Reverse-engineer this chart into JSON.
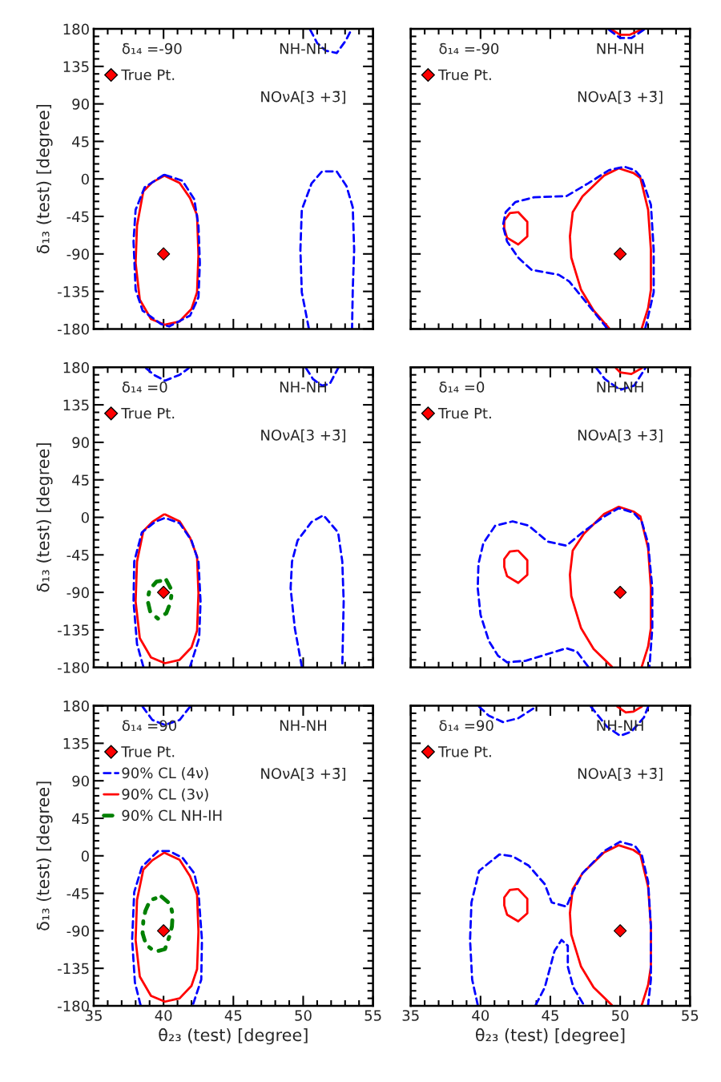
{
  "chart_data": [
    {
      "type": "line",
      "ylabel": "δ₁₃ (test) [degree]",
      "xlim": [
        35,
        55
      ],
      "ylim": [
        -180,
        180
      ],
      "xticks": [
        35,
        40,
        45,
        50,
        55
      ],
      "yticks": [
        -180,
        -135,
        -90,
        -45,
        0,
        45,
        90,
        135,
        180
      ],
      "tick_labels": "y",
      "legend": "top left",
      "annotations": [
        "δ₁₄ =-90",
        "NH-NH",
        "NOνA[3 +3̄]"
      ],
      "series": [
        {
          "type": "scatter",
          "name": "True Pt.",
          "color": "#ff0000",
          "marker": "diamond",
          "x": [
            40
          ],
          "values": [
            -90
          ]
        },
        {
          "color": "#ff0000",
          "line_style": "solid",
          "x": [
            40.1,
            41.15,
            41.9,
            42.4,
            42.5,
            42.4,
            42.0,
            41.15,
            40.1,
            39.1,
            38.3,
            38.0,
            38.1,
            38.55,
            39.2,
            40.0
          ],
          "values": [
            3.5,
            -4.8,
            -23,
            -43.6,
            -91,
            -136,
            -156,
            -171,
            -175,
            -168,
            -145,
            -101,
            -56,
            -15,
            -4,
            3.3
          ]
        },
        {
          "color": "#0000ff",
          "line_style": "dashed",
          "x": [
            40.1,
            41.35,
            42.2,
            42.5,
            42.6,
            42.5,
            41.9,
            40.4,
            39.8,
            38.5,
            38.0,
            37.85,
            38.0,
            38.65,
            40.0
          ],
          "values": [
            4.8,
            -2.2,
            -24.5,
            -56,
            -101,
            -142,
            -164,
            -177,
            -174,
            -158,
            -133,
            -75,
            -37,
            -10,
            4.6
          ]
        },
        {
          "color": "#0000ff",
          "line_style": "dashed",
          "x": [
            50.4,
            49.9,
            49.8,
            49.9,
            50.6,
            51.35,
            52.4,
            53.1,
            53.55,
            53.65,
            53.55,
            53.5
          ],
          "values": [
            -179,
            -136,
            -85,
            -37,
            -5.4,
            9,
            9,
            -8.6,
            -34,
            -85,
            -133,
            -179
          ]
        },
        {
          "color": "#0000ff",
          "line_style": "dashed",
          "x": [
            50.5,
            51.0,
            51.6,
            52.4,
            53.05,
            53.45
          ],
          "values": [
            179,
            163,
            154,
            151,
            166,
            179
          ]
        }
      ]
    },
    {
      "type": "line",
      "xlim": [
        35,
        55
      ],
      "ylim": [
        -180,
        180
      ],
      "xticks": [
        35,
        40,
        45,
        50,
        55
      ],
      "yticks": [
        -180,
        -135,
        -90,
        -45,
        0,
        45,
        90,
        135,
        180
      ],
      "tick_labels": false,
      "legend": "top left",
      "annotations": [
        "δ₁₄ =-90",
        "NH-NH",
        "NOνA[3 +3̄]"
      ],
      "series": [
        {
          "type": "scatter",
          "name": "True Pt.",
          "color": "#ff0000",
          "marker": "diamond",
          "x": [
            50
          ],
          "values": [
            -90
          ]
        },
        {
          "color": "#ff0000",
          "line_style": "solid",
          "x": [
            49.4,
            50,
            50.7,
            51.5
          ],
          "values": [
            179,
            173,
            173,
            179
          ]
        },
        {
          "color": "#0000ff",
          "line_style": "dashed",
          "x": [
            49.2,
            50,
            50.8,
            51.7
          ],
          "values": [
            179,
            169,
            169,
            179
          ]
        },
        {
          "color": "#ff0000",
          "line_style": "solid",
          "x": [
            49.2,
            48.1,
            47.2,
            46.5,
            46.4,
            46.6,
            47.3,
            48.85,
            49.9,
            50.95,
            51.45,
            52.0,
            52.2,
            52.2,
            52.0,
            51.55
          ],
          "values": [
            -179,
            -158,
            -133,
            -94.5,
            -69,
            -40,
            -21,
            4,
            12.7,
            7,
            1,
            -37,
            -85,
            -133,
            -155,
            -179
          ]
        },
        {
          "color": "#ff0000",
          "line_style": "solid",
          "x": [
            42.7,
            43.35,
            43.35,
            42.7,
            41.9,
            41.7,
            41.7,
            42.1,
            42.6
          ],
          "values": [
            -40,
            -51.5,
            -69,
            -78.6,
            -70.6,
            -59.5,
            -50,
            -41,
            -40
          ]
        },
        {
          "color": "#0000ff",
          "line_style": "dashed",
          "x": [
            49.05,
            47.9,
            46.35,
            45.6,
            43.65,
            42.7,
            41.9,
            41.6,
            41.8,
            42.5,
            43.85,
            46.15,
            47.7,
            49.2,
            50.3,
            51.05,
            51.55,
            52.2,
            52.4,
            52.4,
            52.1,
            51.8
          ],
          "values": [
            -179,
            -155,
            -123,
            -115,
            -109,
            -94.5,
            -75,
            -56,
            -40,
            -27.7,
            -22,
            -20.7,
            -5.4,
            10.5,
            14.6,
            10.5,
            1,
            -31,
            -85,
            -136,
            -158,
            -179
          ]
        }
      ]
    },
    {
      "type": "line",
      "ylabel": "δ₁₃ (test) [degree]",
      "xlim": [
        35,
        55
      ],
      "ylim": [
        -180,
        180
      ],
      "xticks": [
        35,
        40,
        45,
        50,
        55
      ],
      "yticks": [
        -180,
        -135,
        -90,
        -45,
        0,
        45,
        90,
        135,
        180
      ],
      "tick_labels": "y",
      "legend": "top left",
      "annotations": [
        "δ₁₄ =0",
        "NH-NH",
        "NOνA[3 +3̄]"
      ],
      "series": [
        {
          "type": "scatter",
          "name": "True Pt.",
          "color": "#ff0000",
          "marker": "diamond",
          "x": [
            40
          ],
          "values": [
            -90
          ]
        },
        {
          "color": "#0000ff",
          "line_style": "dashed",
          "x": [
            38.75,
            39.3,
            40.1,
            41.15,
            41.8
          ],
          "values": [
            179,
            171,
            164,
            171,
            179
          ]
        },
        {
          "color": "#0000ff",
          "line_style": "dashed",
          "x": [
            50.2,
            50.7,
            51.35,
            51.9,
            52.5
          ],
          "values": [
            179,
            166,
            158,
            160,
            179
          ]
        },
        {
          "color": "#ff0000",
          "line_style": "solid",
          "x": [
            40.1,
            41.15,
            41.9,
            42.4,
            42.5,
            42.4,
            42.0,
            41.15,
            40.1,
            39.1,
            38.3,
            38.0,
            38.1,
            38.55,
            39.2,
            40.0
          ],
          "values": [
            3.5,
            -4.8,
            -24.5,
            -46.8,
            -91,
            -136,
            -156,
            -171,
            -175,
            -168,
            -145,
            -101,
            -53,
            -16.5,
            -5.4,
            3.3
          ]
        },
        {
          "color": "#0000ff",
          "line_style": "dashed",
          "x": [
            38.55,
            38.1,
            37.85,
            37.9,
            38.45,
            39.4,
            40.1,
            41.15,
            42.0,
            42.5,
            42.65,
            42.55,
            41.9
          ],
          "values": [
            -179,
            -152,
            -101,
            -53,
            -18,
            -5.4,
            -0.6,
            -7,
            -27.7,
            -53,
            -101,
            -145,
            -179
          ]
        },
        {
          "color": "#0000ff",
          "line_style": "dashed",
          "x": [
            49.9,
            49.4,
            49.1,
            49.2,
            49.6,
            50.6,
            51.45,
            52.5,
            52.8,
            52.9,
            52.8
          ],
          "values": [
            -179,
            -133,
            -85,
            -53,
            -27.7,
            -5.4,
            2.5,
            -18,
            -53,
            -101,
            -179
          ]
        },
        {
          "color": "#008000",
          "line_style": "dotted",
          "x": [
            40.2,
            40.6,
            40.5,
            40.2,
            39.6,
            39.05,
            38.85,
            39.0,
            39.5,
            40.1
          ],
          "values": [
            -75.4,
            -88,
            -102,
            -115,
            -121.5,
            -113.5,
            -99.3,
            -86.6,
            -77,
            -75.5
          ]
        }
      ]
    },
    {
      "type": "line",
      "xlim": [
        35,
        55
      ],
      "ylim": [
        -180,
        180
      ],
      "xticks": [
        35,
        40,
        45,
        50,
        55
      ],
      "yticks": [
        -180,
        -135,
        -90,
        -45,
        0,
        45,
        90,
        135,
        180
      ],
      "tick_labels": false,
      "legend": "top left",
      "annotations": [
        "δ₁₄ =0",
        "NH-NH",
        "NOνA[3 +3̄]"
      ],
      "series": [
        {
          "type": "scatter",
          "name": "True Pt.",
          "color": "#ff0000",
          "marker": "diamond",
          "x": [
            50
          ],
          "values": [
            -90
          ]
        },
        {
          "color": "#ff0000",
          "line_style": "solid",
          "x": [
            49.7,
            50,
            50.8,
            51.55
          ],
          "values": [
            179,
            174,
            172,
            179
          ]
        },
        {
          "color": "#0000ff",
          "line_style": "dashed",
          "x": [
            48.3,
            48.9,
            50,
            51,
            51.8
          ],
          "values": [
            179,
            166,
            153,
            158,
            179
          ]
        },
        {
          "color": "#ff0000",
          "line_style": "solid",
          "x": [
            49.4,
            48.1,
            47.2,
            46.5,
            46.4,
            46.6,
            47.4,
            48.85,
            49.9,
            50.95,
            51.45,
            52.0,
            52.2,
            52.2,
            52.0,
            51.55
          ],
          "values": [
            -179,
            -158,
            -133,
            -94.5,
            -69,
            -40,
            -19.7,
            4,
            12.7,
            7,
            1,
            -37,
            -85,
            -133,
            -155,
            -179
          ]
        },
        {
          "color": "#ff0000",
          "line_style": "solid",
          "x": [
            42.7,
            43.35,
            43.35,
            42.7,
            41.9,
            41.7,
            41.7,
            42.1,
            42.6
          ],
          "values": [
            -40,
            -51.5,
            -69,
            -78.6,
            -70.6,
            -59.5,
            -50,
            -41,
            -40
          ]
        },
        {
          "color": "#0000ff",
          "line_style": "dashed",
          "x": [
            47.7,
            46.9,
            46.15,
            44.8,
            43.25,
            41.9,
            41.25,
            40.6,
            40.0,
            39.8,
            39.85,
            40.2,
            41.05,
            42.3,
            43.45,
            44.8,
            46.15,
            47.3,
            48.85,
            49.9,
            50.95,
            51.55,
            52.0,
            52.3,
            52.3,
            52.1
          ],
          "values": [
            -179,
            -161,
            -157,
            -164,
            -172,
            -174,
            -166,
            -148.5,
            -117,
            -85,
            -56,
            -31,
            -10,
            -4.8,
            -10,
            -29,
            -34,
            -18,
            1,
            11,
            5.7,
            -5.4,
            -31,
            -85,
            -133,
            -179
          ]
        }
      ]
    },
    {
      "type": "line",
      "xlabel": "θ₂₃ (test) [degree]",
      "ylabel": "δ₁₃ (test) [degree]",
      "xlim": [
        35,
        55
      ],
      "ylim": [
        -180,
        180
      ],
      "xticks": [
        35,
        40,
        45,
        50,
        55
      ],
      "yticks": [
        -180,
        -135,
        -90,
        -45,
        0,
        45,
        90,
        135,
        180
      ],
      "legend": "top left",
      "annotations": [
        "δ₁₄ =90",
        "NH-NH",
        "NOνA[3 +3̄]"
      ],
      "series": [
        {
          "type": "scatter",
          "name": "True Pt.",
          "color": "#ff0000",
          "marker": "diamond",
          "x": [
            40
          ],
          "values": [
            -90
          ]
        },
        {
          "name": "90% CL (4ν)",
          "color": "#0000ff",
          "line_style": "dashed",
          "x": [
            38.35,
            37.95,
            37.75,
            37.9,
            38.45,
            39.6,
            40.4,
            41.35,
            42.2,
            42.5,
            42.75,
            42.7,
            42.1
          ],
          "values": [
            -179,
            -152,
            -101,
            -43.6,
            -13.4,
            5.7,
            5.7,
            -2.2,
            -21,
            -43.6,
            -101,
            -148.5,
            -179
          ]
        },
        {
          "name": "90% CL (3ν)",
          "color": "#ff0000",
          "line_style": "solid",
          "x": [
            40.1,
            41.15,
            41.9,
            42.4,
            42.5,
            42.4,
            42.0,
            41.15,
            40.1,
            39.1,
            38.3,
            38.0,
            38.1,
            38.55,
            39.2,
            40.0
          ],
          "values": [
            3.5,
            -4.8,
            -24.5,
            -46.8,
            -91,
            -136,
            -156,
            -171,
            -175,
            -168,
            -145,
            -101,
            -53,
            -16.5,
            -5.4,
            3.3
          ]
        },
        {
          "name": "90% CL NH-IH",
          "color": "#008000",
          "line_style": "dotted",
          "x": [
            39.85,
            40.5,
            40.65,
            40.6,
            40.4,
            40.1,
            39.4,
            38.75,
            38.5,
            38.55,
            38.7,
            39.05,
            39.75
          ],
          "values": [
            -49,
            -58,
            -70.6,
            -85,
            -97.6,
            -112,
            -115,
            -107,
            -93,
            -78.6,
            -66,
            -53,
            -49.3
          ]
        },
        {
          "color": "#0000ff",
          "line_style": "dashed",
          "x": [
            38.5,
            39.2,
            40.1,
            41.15,
            41.9
          ],
          "values": [
            179,
            163,
            157,
            163,
            179
          ]
        }
      ]
    },
    {
      "type": "line",
      "xlabel": "θ₂₃ (test) [degree]",
      "xlim": [
        35,
        55
      ],
      "ylim": [
        -180,
        180
      ],
      "xticks": [
        35,
        40,
        45,
        50,
        55
      ],
      "yticks": [
        -180,
        -135,
        -90,
        -45,
        0,
        45,
        90,
        135,
        180
      ],
      "tick_labels": "x",
      "legend": "top left",
      "annotations": [
        "δ₁₄ =90",
        "NH-NH",
        "NOνA[3 +3̄]"
      ],
      "series": [
        {
          "type": "scatter",
          "name": "True Pt.",
          "color": "#ff0000",
          "marker": "diamond",
          "x": [
            50
          ],
          "values": [
            -90
          ]
        },
        {
          "color": "#ff0000",
          "line_style": "solid",
          "x": [
            49.8,
            50.4,
            50.95,
            51.55
          ],
          "values": [
            179,
            172,
            173,
            179
          ]
        },
        {
          "color": "#0000ff",
          "line_style": "dashed",
          "x": [
            39.9,
            40.6,
            41.6,
            42.7,
            43.85
          ],
          "values": [
            179,
            168,
            160.5,
            165,
            177.5
          ]
        },
        {
          "color": "#0000ff",
          "line_style": "dashed",
          "x": [
            47.9,
            49.05,
            50,
            50.8,
            51.7,
            52.0
          ],
          "values": [
            179,
            155,
            144,
            149,
            166,
            179
          ]
        },
        {
          "color": "#ff0000",
          "line_style": "solid",
          "x": [
            49.4,
            48.1,
            47.2,
            46.5,
            46.4,
            46.6,
            47.3,
            48.85,
            49.9,
            50.95,
            51.45,
            52.0,
            52.2,
            52.2,
            52.0,
            51.55
          ],
          "values": [
            -179,
            -158,
            -133,
            -94.5,
            -69,
            -40,
            -21,
            4,
            12.7,
            7,
            1,
            -37,
            -85,
            -133,
            -155,
            -179
          ]
        },
        {
          "color": "#ff0000",
          "line_style": "solid",
          "x": [
            42.7,
            43.35,
            43.35,
            42.7,
            41.9,
            41.7,
            41.7,
            42.1,
            42.6
          ],
          "values": [
            -40,
            -51.5,
            -69,
            -78.6,
            -70.6,
            -59.5,
            -50,
            -41,
            -40
          ]
        },
        {
          "color": "#0000ff",
          "line_style": "dashed",
          "x": [
            39.8,
            39.4,
            39.25,
            39.35,
            39.9,
            41.35,
            42.3,
            43.45,
            44.6,
            45.1,
            46.15,
            46.6,
            47.3,
            48.85,
            50,
            51.05,
            51.55,
            52.0,
            52.2,
            52.2,
            52.0
          ],
          "values": [
            -179,
            -148.5,
            -101,
            -56,
            -18,
            1.6,
            -0.6,
            -11.8,
            -34,
            -56,
            -61,
            -43.6,
            -21,
            5.7,
            16.9,
            12,
            1,
            -31,
            -85,
            -148.5,
            -179
          ]
        },
        {
          "color": "#0000ff",
          "line_style": "dashed",
          "x": [
            43.95,
            44.6,
            45.0,
            45.3,
            45.8,
            46.25,
            46.25,
            46.65,
            47.4
          ],
          "values": [
            -179,
            -158,
            -133,
            -114,
            -101,
            -108,
            -133,
            -158,
            -179
          ]
        }
      ]
    }
  ]
}
